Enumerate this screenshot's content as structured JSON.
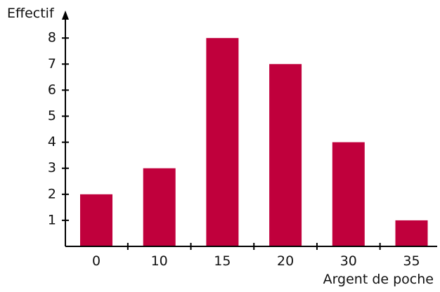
{
  "chart_data": {
    "type": "bar",
    "categories": [
      "0",
      "10",
      "15",
      "20",
      "30",
      "35"
    ],
    "values": [
      2,
      3,
      8,
      7,
      4,
      1
    ],
    "title": "",
    "xlabel": "Argent de poche",
    "ylabel": "Effectif",
    "yticks": [
      1,
      2,
      3,
      4,
      5,
      6,
      7,
      8
    ],
    "ylim": [
      0,
      9
    ],
    "grid": false,
    "legend": "none",
    "bar_color": "#C0003C",
    "axis_color": "#000000"
  }
}
